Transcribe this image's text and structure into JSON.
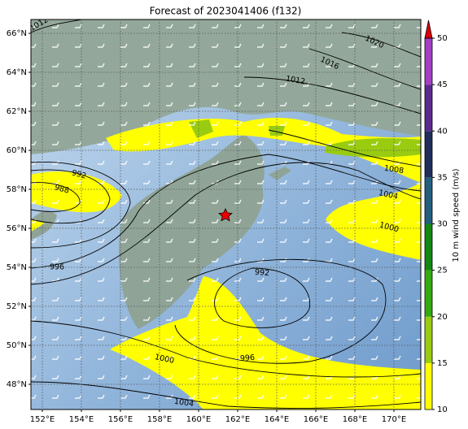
{
  "title": "Forecast of 2023041406 (f132)",
  "map": {
    "lon_ticks": [
      {
        "value": 152,
        "label": "152°E"
      },
      {
        "value": 154,
        "label": "154°E"
      },
      {
        "value": 156,
        "label": "156°E"
      },
      {
        "value": 158,
        "label": "158°E"
      },
      {
        "value": 160,
        "label": "160°E"
      },
      {
        "value": 162,
        "label": "162°E"
      },
      {
        "value": 164,
        "label": "164°E"
      },
      {
        "value": 166,
        "label": "166°E"
      },
      {
        "value": 168,
        "label": "168°E"
      },
      {
        "value": 170,
        "label": "170°E"
      }
    ],
    "lat_ticks": [
      {
        "value": 48,
        "label": "48°N"
      },
      {
        "value": 50,
        "label": "50°N"
      },
      {
        "value": 52,
        "label": "52°N"
      },
      {
        "value": 54,
        "label": "54°N"
      },
      {
        "value": 56,
        "label": "56°N"
      },
      {
        "value": 58,
        "label": "58°N"
      },
      {
        "value": 60,
        "label": "60°N"
      },
      {
        "value": 62,
        "label": "62°N"
      },
      {
        "value": 64,
        "label": "64°N"
      },
      {
        "value": 66,
        "label": "66°N"
      }
    ],
    "contour_labels": [
      1012,
      1020,
      1016,
      1012,
      992,
      988,
      1008,
      1004,
      1000,
      996,
      992,
      1000,
      996,
      1004
    ]
  },
  "colorbar": {
    "label": "10 m wind speed (m/s)",
    "ticks": [
      10,
      15,
      20,
      25,
      30,
      35,
      40,
      45,
      50
    ],
    "colors": [
      "#ffff00",
      "#99cc11",
      "#33aa11",
      "#118811",
      "#235e7e",
      "#1f2d5c",
      "#5b2a8e",
      "#a43fc4"
    ],
    "extend_color": "#dd0000"
  }
}
